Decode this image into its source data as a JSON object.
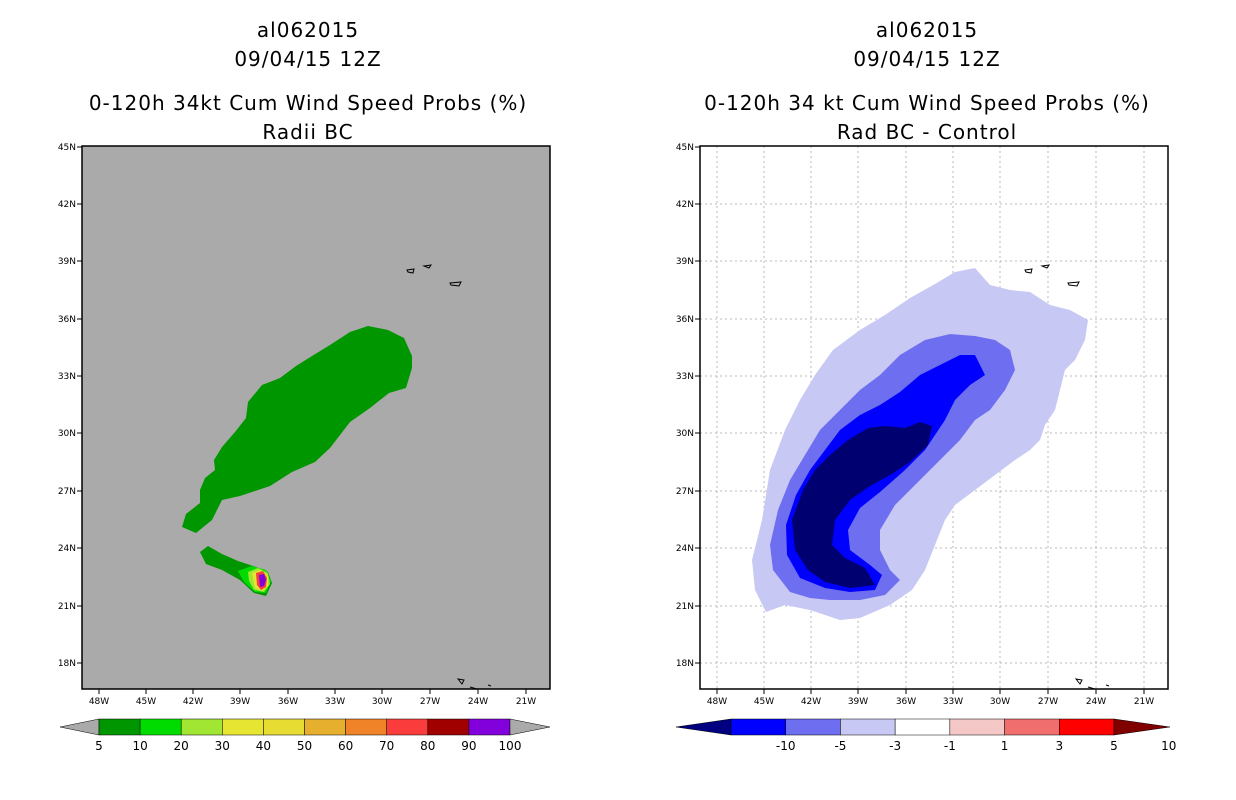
{
  "left_panel": {
    "title_line1": "al062015",
    "title_line2": "09/04/15 12Z",
    "title_line3": "0-120h 34kt Cum Wind Speed Probs (%)",
    "title_line4": "Radii BC",
    "colorbar_labels": [
      "5",
      "10",
      "20",
      "30",
      "40",
      "50",
      "60",
      "70",
      "80",
      "90",
      "100"
    ],
    "colorbar_colors": [
      "#009600",
      "#00dc00",
      "#a0e632",
      "#e6e632",
      "#e6dc32",
      "#e6af2d",
      "#f08228",
      "#fa3c3c",
      "#a00000",
      "#8200dc"
    ]
  },
  "right_panel": {
    "title_line1": "al062015",
    "title_line2": "09/04/15 12Z",
    "title_line3": "0-120h 34 kt Cum Wind Speed Probs (%)",
    "title_line4": "Rad BC - Control",
    "colorbar_labels": [
      "-10",
      "-5",
      "-3",
      "-1",
      "1",
      "3",
      "5",
      "10"
    ],
    "colorbar_colors": [
      "#000080",
      "#0000ff",
      "#6e6ef0",
      "#c8c8f5",
      "#ffffff",
      "#f5c8c8",
      "#f06e6e",
      "#ff0000",
      "#800000"
    ]
  },
  "map_axes": {
    "lat_labels": [
      "45N",
      "42N",
      "39N",
      "36N",
      "33N",
      "30N",
      "27N",
      "24N",
      "21N",
      "18N"
    ],
    "lon_labels": [
      "48W",
      "45W",
      "42W",
      "39W",
      "36W",
      "33W",
      "30W",
      "27W",
      "24W",
      "21W"
    ]
  }
}
